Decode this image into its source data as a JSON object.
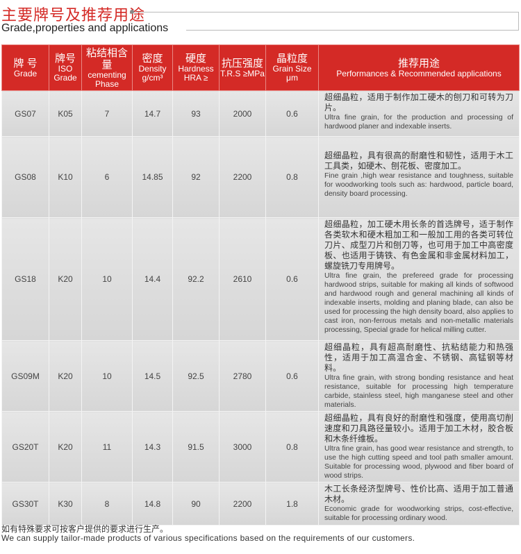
{
  "header": {
    "title_cn": "主要牌号及推荐用途",
    "title_en": "Grade,properties and applications"
  },
  "colors": {
    "accent": "#d42a26",
    "row_bg": "#dddddd"
  },
  "table": {
    "columns": [
      {
        "cn": "牌 号",
        "en": "Grade"
      },
      {
        "cn": "牌号",
        "en": "ISO Grade"
      },
      {
        "cn": "粘结相含量",
        "en": "cementing Phase"
      },
      {
        "cn": "密度",
        "en": "Density g/cm³"
      },
      {
        "cn": "硬度",
        "en": "Hardness HRA ≥"
      },
      {
        "cn": "抗压强度",
        "en": "T.R.S ≥MPa"
      },
      {
        "cn": "晶粒度",
        "en": "Grain Size μm"
      },
      {
        "cn": "推荐用途",
        "en": "Performances & Recommended applications"
      }
    ],
    "rows": [
      {
        "grade": "GS07",
        "iso": "K05",
        "phase": "7",
        "density": "14.7",
        "hardness": "93",
        "trs": "2000",
        "grain": "0.6",
        "app_cn": "超细晶粒，适用于制作加工硬木的刨刀和可转为刀片。",
        "app_en": "Ultra fine grain, for the production and processing of hardwood planer and indexable inserts."
      },
      {
        "grade": "GS08",
        "iso": "K10",
        "phase": "6",
        "density": "14.85",
        "hardness": "92",
        "trs": "2200",
        "grain": "0.8",
        "app_cn": "超细晶粒，具有很高的耐磨性和韧性，适用于木工工具类，如硬木、刨花板、密度加工。",
        "app_en": "Fine grain ,high wear resistance and toughness, suitable for woodworking tools such as: hardwood, particle board, density board processing."
      },
      {
        "grade": "GS18",
        "iso": "K20",
        "phase": "10",
        "density": "14.4",
        "hardness": "92.2",
        "trs": "2610",
        "grain": "0.6",
        "app_cn": "超细晶粒，加工硬木用长条的首选牌号，适于制作各类软木和硬木粗加工和一般加工用的各类可转位刀片、成型刀片和刨刀等，也可用于加工中高密度板、也适用于铸铁、有色金属和非金属材料加工，螺旋铣刀专用牌号。",
        "app_en": "Ultra fine grain, the prefereed grade for processing hardwood strips, suitable for making all kinds of softwood and hardwood rough and general machining all kinds of indexable inserts, molding and planing blade, can also be used for processing the high density board, also applies to cast iron, non-ferrous metals and non-metallic materials processing, Special grade for helical milling cutter."
      },
      {
        "grade": "GS09M",
        "iso": "K20",
        "phase": "10",
        "density": "14.5",
        "hardness": "92.5",
        "trs": "2780",
        "grain": "0.6",
        "app_cn": "超细晶粒，具有超高耐磨性、抗粘结能力和热强性，适用于加工高温合金、不锈钢、高锰钢等材料。",
        "app_en": "Ultra fine grain, with strong bonding resistance and heat resistance, suitable for processing high temperature carbide, stainless steel, high manganese steel and other materials."
      },
      {
        "grade": "GS20T",
        "iso": "K20",
        "phase": "11",
        "density": "14.3",
        "hardness": "91.5",
        "trs": "3000",
        "grain": "0.8",
        "app_cn": "超细晶粒，具有良好的耐磨性和强度，使用高切削速度和刀具路径量较小。适用于加工木材，胶合板和木条纤维板。",
        "app_en": "Ultra fine grain, has good wear resistance and strength, to use the high cutting speed and tool path smaller amount. Suitable for processing wood, plywood and fiber board of wood strips."
      },
      {
        "grade": "GS30T",
        "iso": "K30",
        "phase": "8",
        "density": "14.8",
        "hardness": "90",
        "trs": "2200",
        "grain": "1.8",
        "app_cn": "木工长条经济型牌号、性价比高、适用于加工普通木材。",
        "app_en": "Economic grade for woodworking strips, cost-effective, suitable for processing ordinary wood."
      }
    ]
  },
  "footer": {
    "cn": "如有特殊要求可按客户提供的要求进行生产。",
    "en": "We can supply tailor-made products of various specifications based on the requirements of our customers."
  }
}
